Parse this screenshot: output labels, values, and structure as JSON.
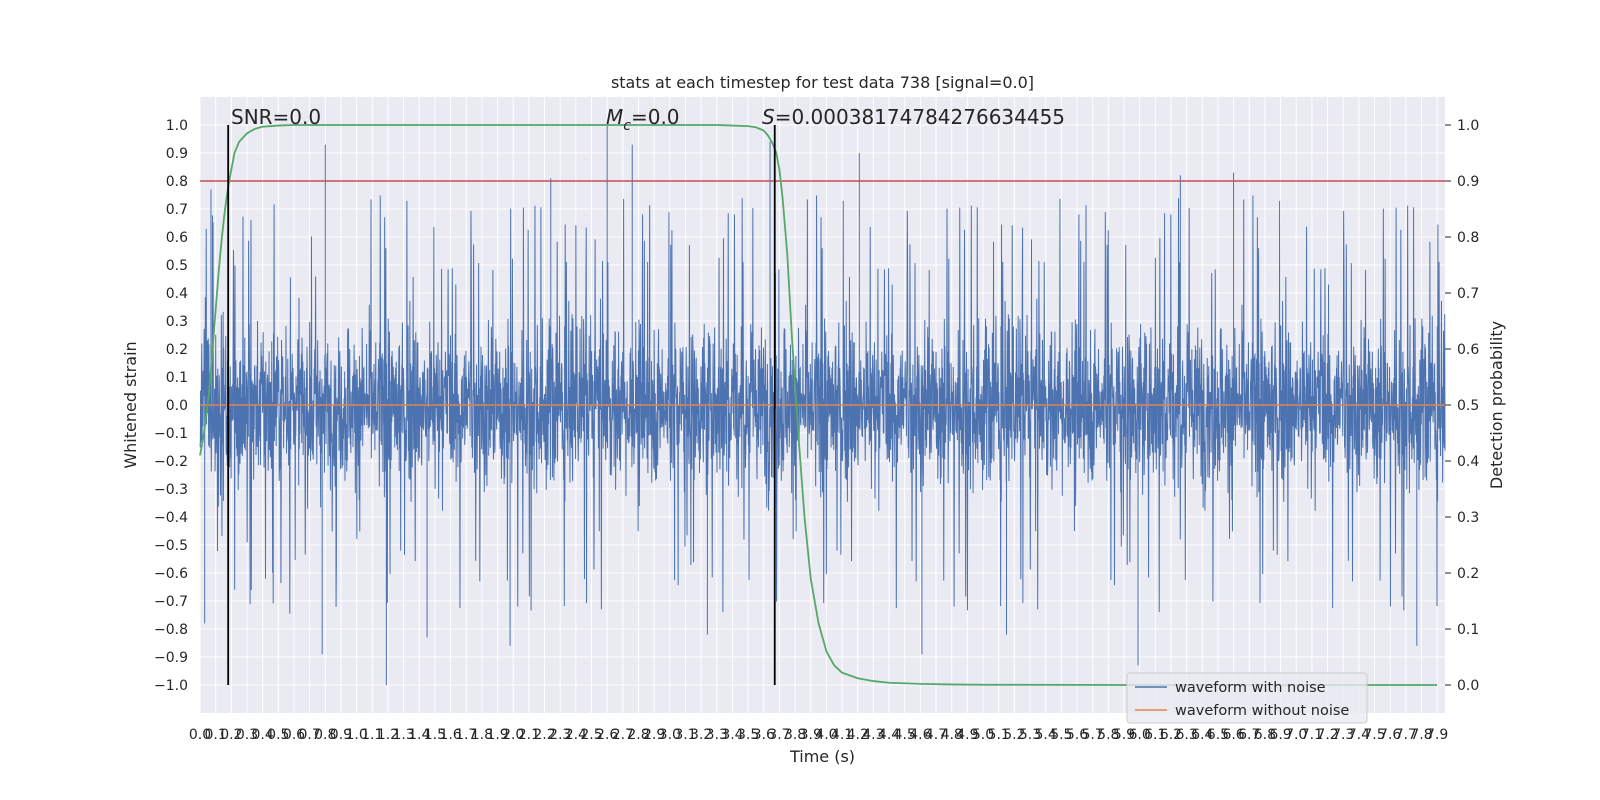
{
  "chart_data": {
    "type": "line",
    "title": "stats at each timestep for test data 738 [signal=0.0]",
    "xlabel": "Time (s)",
    "ylabel": "Whitened strain",
    "y2label": "Detection probability",
    "xlim": [
      0.0,
      7.95
    ],
    "ylim": [
      -1.1,
      1.1
    ],
    "y2lim": [
      -0.05,
      1.05
    ],
    "x_ticks": [
      0.0,
      0.1,
      0.2,
      0.3,
      0.4,
      0.5,
      0.6,
      0.7,
      0.8,
      0.9,
      1.0,
      1.1,
      1.2,
      1.3,
      1.4,
      1.5,
      1.6,
      1.7,
      1.8,
      1.9,
      2.0,
      2.1,
      2.2,
      2.3,
      2.4,
      2.5,
      2.6,
      2.7,
      2.8,
      2.9,
      3.0,
      3.1,
      3.2,
      3.3,
      3.4,
      3.5,
      3.6,
      3.7,
      3.8,
      3.9,
      4.0,
      4.1,
      4.2,
      4.3,
      4.4,
      4.5,
      4.6,
      4.7,
      4.8,
      4.9,
      5.0,
      5.1,
      5.2,
      5.3,
      5.4,
      5.5,
      5.6,
      5.7,
      5.8,
      5.9,
      6.0,
      6.1,
      6.2,
      6.3,
      6.4,
      6.5,
      6.6,
      6.7,
      6.8,
      6.9,
      7.0,
      7.1,
      7.2,
      7.3,
      7.4,
      7.5,
      7.6,
      7.7,
      7.8,
      7.9
    ],
    "x_tick_labels": [
      "0.0",
      "0.1",
      "0.2",
      "0.3",
      "0.4",
      "0.5",
      "0.6",
      "0.7",
      "0.8",
      "0.9",
      "1.0",
      "1.1",
      "1.2",
      "1.3",
      "1.4",
      "1.5",
      "1.6",
      "1.7",
      "1.8",
      "1.9",
      "2.0",
      "2.1",
      "2.2",
      "2.3",
      "2.4",
      "2.5",
      "2.6",
      "2.7",
      "2.8",
      "2.9",
      "3.0",
      "3.1",
      "3.2",
      "3.3",
      "3.4",
      "3.5",
      "3.6",
      "3.7",
      "3.8",
      "3.9",
      "4.0",
      "4.1",
      "4.2",
      "4.3",
      "4.4",
      "4.5",
      "4.6",
      "4.7",
      "4.8",
      "4.9",
      "5.0",
      "5.1",
      "5.2",
      "5.3",
      "5.4",
      "5.5",
      "5.6",
      "5.7",
      "5.8",
      "5.9",
      "6.0",
      "6.1",
      "6.2",
      "6.3",
      "6.4",
      "6.5",
      "6.6",
      "6.7",
      "6.8",
      "6.9",
      "7.0",
      "7.1",
      "7.2",
      "7.3",
      "7.4",
      "7.5",
      "7.6",
      "7.7",
      "7.8",
      "7.9"
    ],
    "y_ticks": [
      -1.0,
      -0.9,
      -0.8,
      -0.7,
      -0.6,
      -0.5,
      -0.4,
      -0.3,
      -0.2,
      -0.1,
      0.0,
      0.1,
      0.2,
      0.3,
      0.4,
      0.5,
      0.6,
      0.7,
      0.8,
      0.9,
      1.0
    ],
    "y_tick_labels": [
      "−1.0",
      "−0.9",
      "−0.8",
      "−0.7",
      "−0.6",
      "−0.5",
      "−0.4",
      "−0.3",
      "−0.2",
      "−0.1",
      "0.0",
      "0.1",
      "0.2",
      "0.3",
      "0.4",
      "0.5",
      "0.6",
      "0.7",
      "0.8",
      "0.9",
      "1.0"
    ],
    "y2_ticks": [
      0.0,
      0.1,
      0.2,
      0.3,
      0.4,
      0.5,
      0.6,
      0.7,
      0.8,
      0.9,
      1.0
    ],
    "y2_tick_labels": [
      "0.0",
      "0.1",
      "0.2",
      "0.3",
      "0.4",
      "0.5",
      "0.6",
      "0.7",
      "0.8",
      "0.9",
      "1.0"
    ],
    "y2_threshold": 0.9,
    "vertical_markers_x": [
      0.18,
      3.67
    ],
    "annotations": {
      "snr": "SNR=0.0",
      "mc_symbol": "M",
      "mc_sub": "c",
      "mc_value": "=0.0",
      "s_symbol": "S",
      "s_value": "=0.0003817478427663445​5"
    },
    "series": [
      {
        "name": "waveform with noise",
        "axis": "left",
        "color": "#4c72b0",
        "sample_rate_hz": 2048,
        "envelope_peaks": [
          {
            "x": 0.07,
            "y": 0.77
          },
          {
            "x": 0.03,
            "y": -0.78
          },
          {
            "x": 0.8,
            "y": 0.93
          },
          {
            "x": 0.78,
            "y": -0.89
          },
          {
            "x": 1.19,
            "y": -1.0
          },
          {
            "x": 1.45,
            "y": -0.83
          },
          {
            "x": 1.98,
            "y": -0.86
          },
          {
            "x": 2.24,
            "y": 0.81
          },
          {
            "x": 2.6,
            "y": 1.0
          },
          {
            "x": 2.76,
            "y": 0.93
          },
          {
            "x": 3.24,
            "y": -0.82
          },
          {
            "x": 3.64,
            "y": 0.94
          },
          {
            "x": 4.21,
            "y": 0.9
          },
          {
            "x": 4.61,
            "y": -0.89
          },
          {
            "x": 5.15,
            "y": -0.82
          },
          {
            "x": 5.99,
            "y": -0.93
          },
          {
            "x": 6.26,
            "y": 0.82
          },
          {
            "x": 6.6,
            "y": 0.83
          },
          {
            "x": 7.77,
            "y": -0.86
          }
        ]
      },
      {
        "name": "waveform without noise",
        "axis": "left",
        "color": "#dd8452",
        "x": [
          0.0,
          7.95
        ],
        "y": [
          0.0,
          0.0
        ]
      },
      {
        "name": "",
        "axis": "right",
        "color": "#55a868",
        "x": [
          0.0,
          0.02,
          0.04,
          0.06,
          0.08,
          0.1,
          0.12,
          0.14,
          0.16,
          0.18,
          0.2,
          0.22,
          0.25,
          0.3,
          0.35,
          0.4,
          0.5,
          0.6,
          1.0,
          2.0,
          3.0,
          3.3,
          3.4,
          3.5,
          3.55,
          3.6,
          3.63,
          3.66,
          3.68,
          3.7,
          3.72,
          3.75,
          3.78,
          3.82,
          3.86,
          3.9,
          3.95,
          4.0,
          4.05,
          4.1,
          4.2,
          4.3,
          4.4,
          4.6,
          4.8,
          5.0,
          6.0,
          7.0,
          7.9
        ],
        "y": [
          0.41,
          0.44,
          0.48,
          0.53,
          0.6,
          0.67,
          0.74,
          0.8,
          0.85,
          0.89,
          0.92,
          0.95,
          0.97,
          0.985,
          0.993,
          0.997,
          0.999,
          1.0,
          1.0,
          1.0,
          1.0,
          1.0,
          0.999,
          0.998,
          0.996,
          0.99,
          0.98,
          0.965,
          0.95,
          0.92,
          0.87,
          0.77,
          0.62,
          0.45,
          0.3,
          0.19,
          0.11,
          0.06,
          0.035,
          0.022,
          0.012,
          0.007,
          0.004,
          0.002,
          0.001,
          0.0005,
          0.0,
          0.0,
          0.0
        ]
      }
    ],
    "legend": {
      "placement": "lower-right",
      "entries": [
        "waveform with noise",
        "waveform without noise"
      ]
    },
    "grid": true,
    "style": {
      "axes_bg": "#eaeaf2",
      "grid_color": "#ffffff",
      "text_color": "#262626",
      "threshold_color": "#c44e52",
      "marker_color": "#000000"
    }
  }
}
